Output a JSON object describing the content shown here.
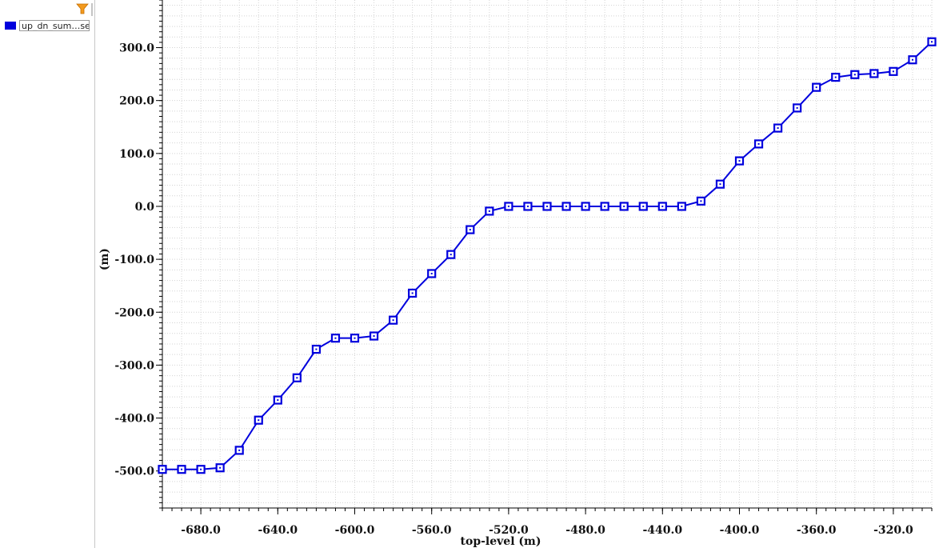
{
  "legend": {
    "filter_icon": "filter-funnel-icon",
    "items": [
      {
        "label": "up_dn_sum…se",
        "color": "#0000dd"
      }
    ]
  },
  "chart_data": {
    "type": "line",
    "xlabel": "top-level (m)",
    "ylabel": "(m)",
    "xlim": [
      -700,
      -300
    ],
    "ylim": [
      -570,
      390
    ],
    "xticks": [
      -680,
      -640,
      -600,
      -560,
      -520,
      -480,
      -440,
      -400,
      -360,
      -320
    ],
    "yticks": [
      -500,
      -400,
      -300,
      -200,
      -100,
      0,
      100,
      200,
      300
    ],
    "xtick_labels": [
      "-680.0",
      "-640.0",
      "-600.0",
      "-560.0",
      "-520.0",
      "-480.0",
      "-440.0",
      "-400.0",
      "-360.0",
      "-320.0"
    ],
    "ytick_labels": [
      "-500.0",
      "-400.0",
      "-300.0",
      "-200.0",
      "-100.0",
      "0.0",
      "100.0",
      "200.0",
      "300.0"
    ],
    "grid": true,
    "line_color": "#0000dd",
    "marker": "square",
    "series": [
      {
        "name": "up_dn_sum…se",
        "x": [
          -700,
          -690,
          -680,
          -670,
          -660,
          -650,
          -640,
          -630,
          -620,
          -610,
          -600,
          -590,
          -580,
          -570,
          -560,
          -550,
          -540,
          -530,
          -520,
          -510,
          -500,
          -490,
          -480,
          -470,
          -460,
          -450,
          -440,
          -430,
          -420,
          -410,
          -400,
          -390,
          -380,
          -370,
          -360,
          -350,
          -340,
          -330,
          -320,
          -310,
          -300
        ],
        "y": [
          -497,
          -497,
          -497,
          -494,
          -461,
          -404,
          -366,
          -324,
          -270,
          -249,
          -249,
          -245,
          -215,
          -164,
          -127,
          -91,
          -44,
          -9,
          0,
          0,
          0,
          0,
          0,
          0,
          0,
          0,
          0,
          0,
          10,
          42,
          86,
          118,
          148,
          186,
          225,
          244,
          249,
          251,
          255,
          277,
          311
        ]
      }
    ]
  }
}
